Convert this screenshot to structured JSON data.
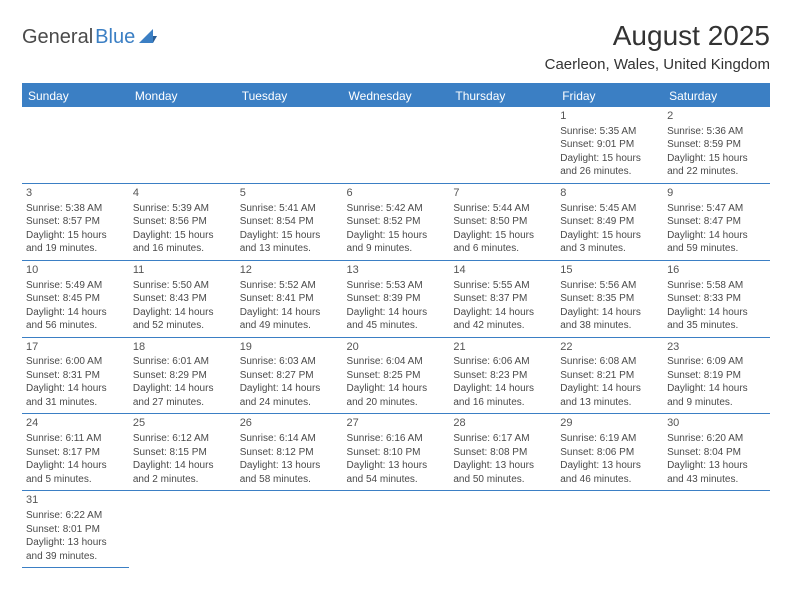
{
  "logo": {
    "text1": "General",
    "text2": "Blue"
  },
  "title": "August 2025",
  "location": "Caerleon, Wales, United Kingdom",
  "colors": {
    "header_bg": "#3b7fc4",
    "header_text": "#ffffff",
    "body_text": "#4a4a4a",
    "rule": "#3b7fc4",
    "page_bg": "#ffffff"
  },
  "day_headers": [
    "Sunday",
    "Monday",
    "Tuesday",
    "Wednesday",
    "Thursday",
    "Friday",
    "Saturday"
  ],
  "weeks": [
    [
      null,
      null,
      null,
      null,
      null,
      {
        "n": "1",
        "sr": "5:35 AM",
        "ss": "9:01 PM",
        "dl1": "15 hours",
        "dl2": "and 26 minutes."
      },
      {
        "n": "2",
        "sr": "5:36 AM",
        "ss": "8:59 PM",
        "dl1": "15 hours",
        "dl2": "and 22 minutes."
      }
    ],
    [
      {
        "n": "3",
        "sr": "5:38 AM",
        "ss": "8:57 PM",
        "dl1": "15 hours",
        "dl2": "and 19 minutes."
      },
      {
        "n": "4",
        "sr": "5:39 AM",
        "ss": "8:56 PM",
        "dl1": "15 hours",
        "dl2": "and 16 minutes."
      },
      {
        "n": "5",
        "sr": "5:41 AM",
        "ss": "8:54 PM",
        "dl1": "15 hours",
        "dl2": "and 13 minutes."
      },
      {
        "n": "6",
        "sr": "5:42 AM",
        "ss": "8:52 PM",
        "dl1": "15 hours",
        "dl2": "and 9 minutes."
      },
      {
        "n": "7",
        "sr": "5:44 AM",
        "ss": "8:50 PM",
        "dl1": "15 hours",
        "dl2": "and 6 minutes."
      },
      {
        "n": "8",
        "sr": "5:45 AM",
        "ss": "8:49 PM",
        "dl1": "15 hours",
        "dl2": "and 3 minutes."
      },
      {
        "n": "9",
        "sr": "5:47 AM",
        "ss": "8:47 PM",
        "dl1": "14 hours",
        "dl2": "and 59 minutes."
      }
    ],
    [
      {
        "n": "10",
        "sr": "5:49 AM",
        "ss": "8:45 PM",
        "dl1": "14 hours",
        "dl2": "and 56 minutes."
      },
      {
        "n": "11",
        "sr": "5:50 AM",
        "ss": "8:43 PM",
        "dl1": "14 hours",
        "dl2": "and 52 minutes."
      },
      {
        "n": "12",
        "sr": "5:52 AM",
        "ss": "8:41 PM",
        "dl1": "14 hours",
        "dl2": "and 49 minutes."
      },
      {
        "n": "13",
        "sr": "5:53 AM",
        "ss": "8:39 PM",
        "dl1": "14 hours",
        "dl2": "and 45 minutes."
      },
      {
        "n": "14",
        "sr": "5:55 AM",
        "ss": "8:37 PM",
        "dl1": "14 hours",
        "dl2": "and 42 minutes."
      },
      {
        "n": "15",
        "sr": "5:56 AM",
        "ss": "8:35 PM",
        "dl1": "14 hours",
        "dl2": "and 38 minutes."
      },
      {
        "n": "16",
        "sr": "5:58 AM",
        "ss": "8:33 PM",
        "dl1": "14 hours",
        "dl2": "and 35 minutes."
      }
    ],
    [
      {
        "n": "17",
        "sr": "6:00 AM",
        "ss": "8:31 PM",
        "dl1": "14 hours",
        "dl2": "and 31 minutes."
      },
      {
        "n": "18",
        "sr": "6:01 AM",
        "ss": "8:29 PM",
        "dl1": "14 hours",
        "dl2": "and 27 minutes."
      },
      {
        "n": "19",
        "sr": "6:03 AM",
        "ss": "8:27 PM",
        "dl1": "14 hours",
        "dl2": "and 24 minutes."
      },
      {
        "n": "20",
        "sr": "6:04 AM",
        "ss": "8:25 PM",
        "dl1": "14 hours",
        "dl2": "and 20 minutes."
      },
      {
        "n": "21",
        "sr": "6:06 AM",
        "ss": "8:23 PM",
        "dl1": "14 hours",
        "dl2": "and 16 minutes."
      },
      {
        "n": "22",
        "sr": "6:08 AM",
        "ss": "8:21 PM",
        "dl1": "14 hours",
        "dl2": "and 13 minutes."
      },
      {
        "n": "23",
        "sr": "6:09 AM",
        "ss": "8:19 PM",
        "dl1": "14 hours",
        "dl2": "and 9 minutes."
      }
    ],
    [
      {
        "n": "24",
        "sr": "6:11 AM",
        "ss": "8:17 PM",
        "dl1": "14 hours",
        "dl2": "and 5 minutes."
      },
      {
        "n": "25",
        "sr": "6:12 AM",
        "ss": "8:15 PM",
        "dl1": "14 hours",
        "dl2": "and 2 minutes."
      },
      {
        "n": "26",
        "sr": "6:14 AM",
        "ss": "8:12 PM",
        "dl1": "13 hours",
        "dl2": "and 58 minutes."
      },
      {
        "n": "27",
        "sr": "6:16 AM",
        "ss": "8:10 PM",
        "dl1": "13 hours",
        "dl2": "and 54 minutes."
      },
      {
        "n": "28",
        "sr": "6:17 AM",
        "ss": "8:08 PM",
        "dl1": "13 hours",
        "dl2": "and 50 minutes."
      },
      {
        "n": "29",
        "sr": "6:19 AM",
        "ss": "8:06 PM",
        "dl1": "13 hours",
        "dl2": "and 46 minutes."
      },
      {
        "n": "30",
        "sr": "6:20 AM",
        "ss": "8:04 PM",
        "dl1": "13 hours",
        "dl2": "and 43 minutes."
      }
    ],
    [
      {
        "n": "31",
        "sr": "6:22 AM",
        "ss": "8:01 PM",
        "dl1": "13 hours",
        "dl2": "and 39 minutes."
      },
      null,
      null,
      null,
      null,
      null,
      null
    ]
  ],
  "labels": {
    "sunrise_prefix": "Sunrise: ",
    "sunset_prefix": "Sunset: ",
    "daylight_prefix": "Daylight: "
  }
}
